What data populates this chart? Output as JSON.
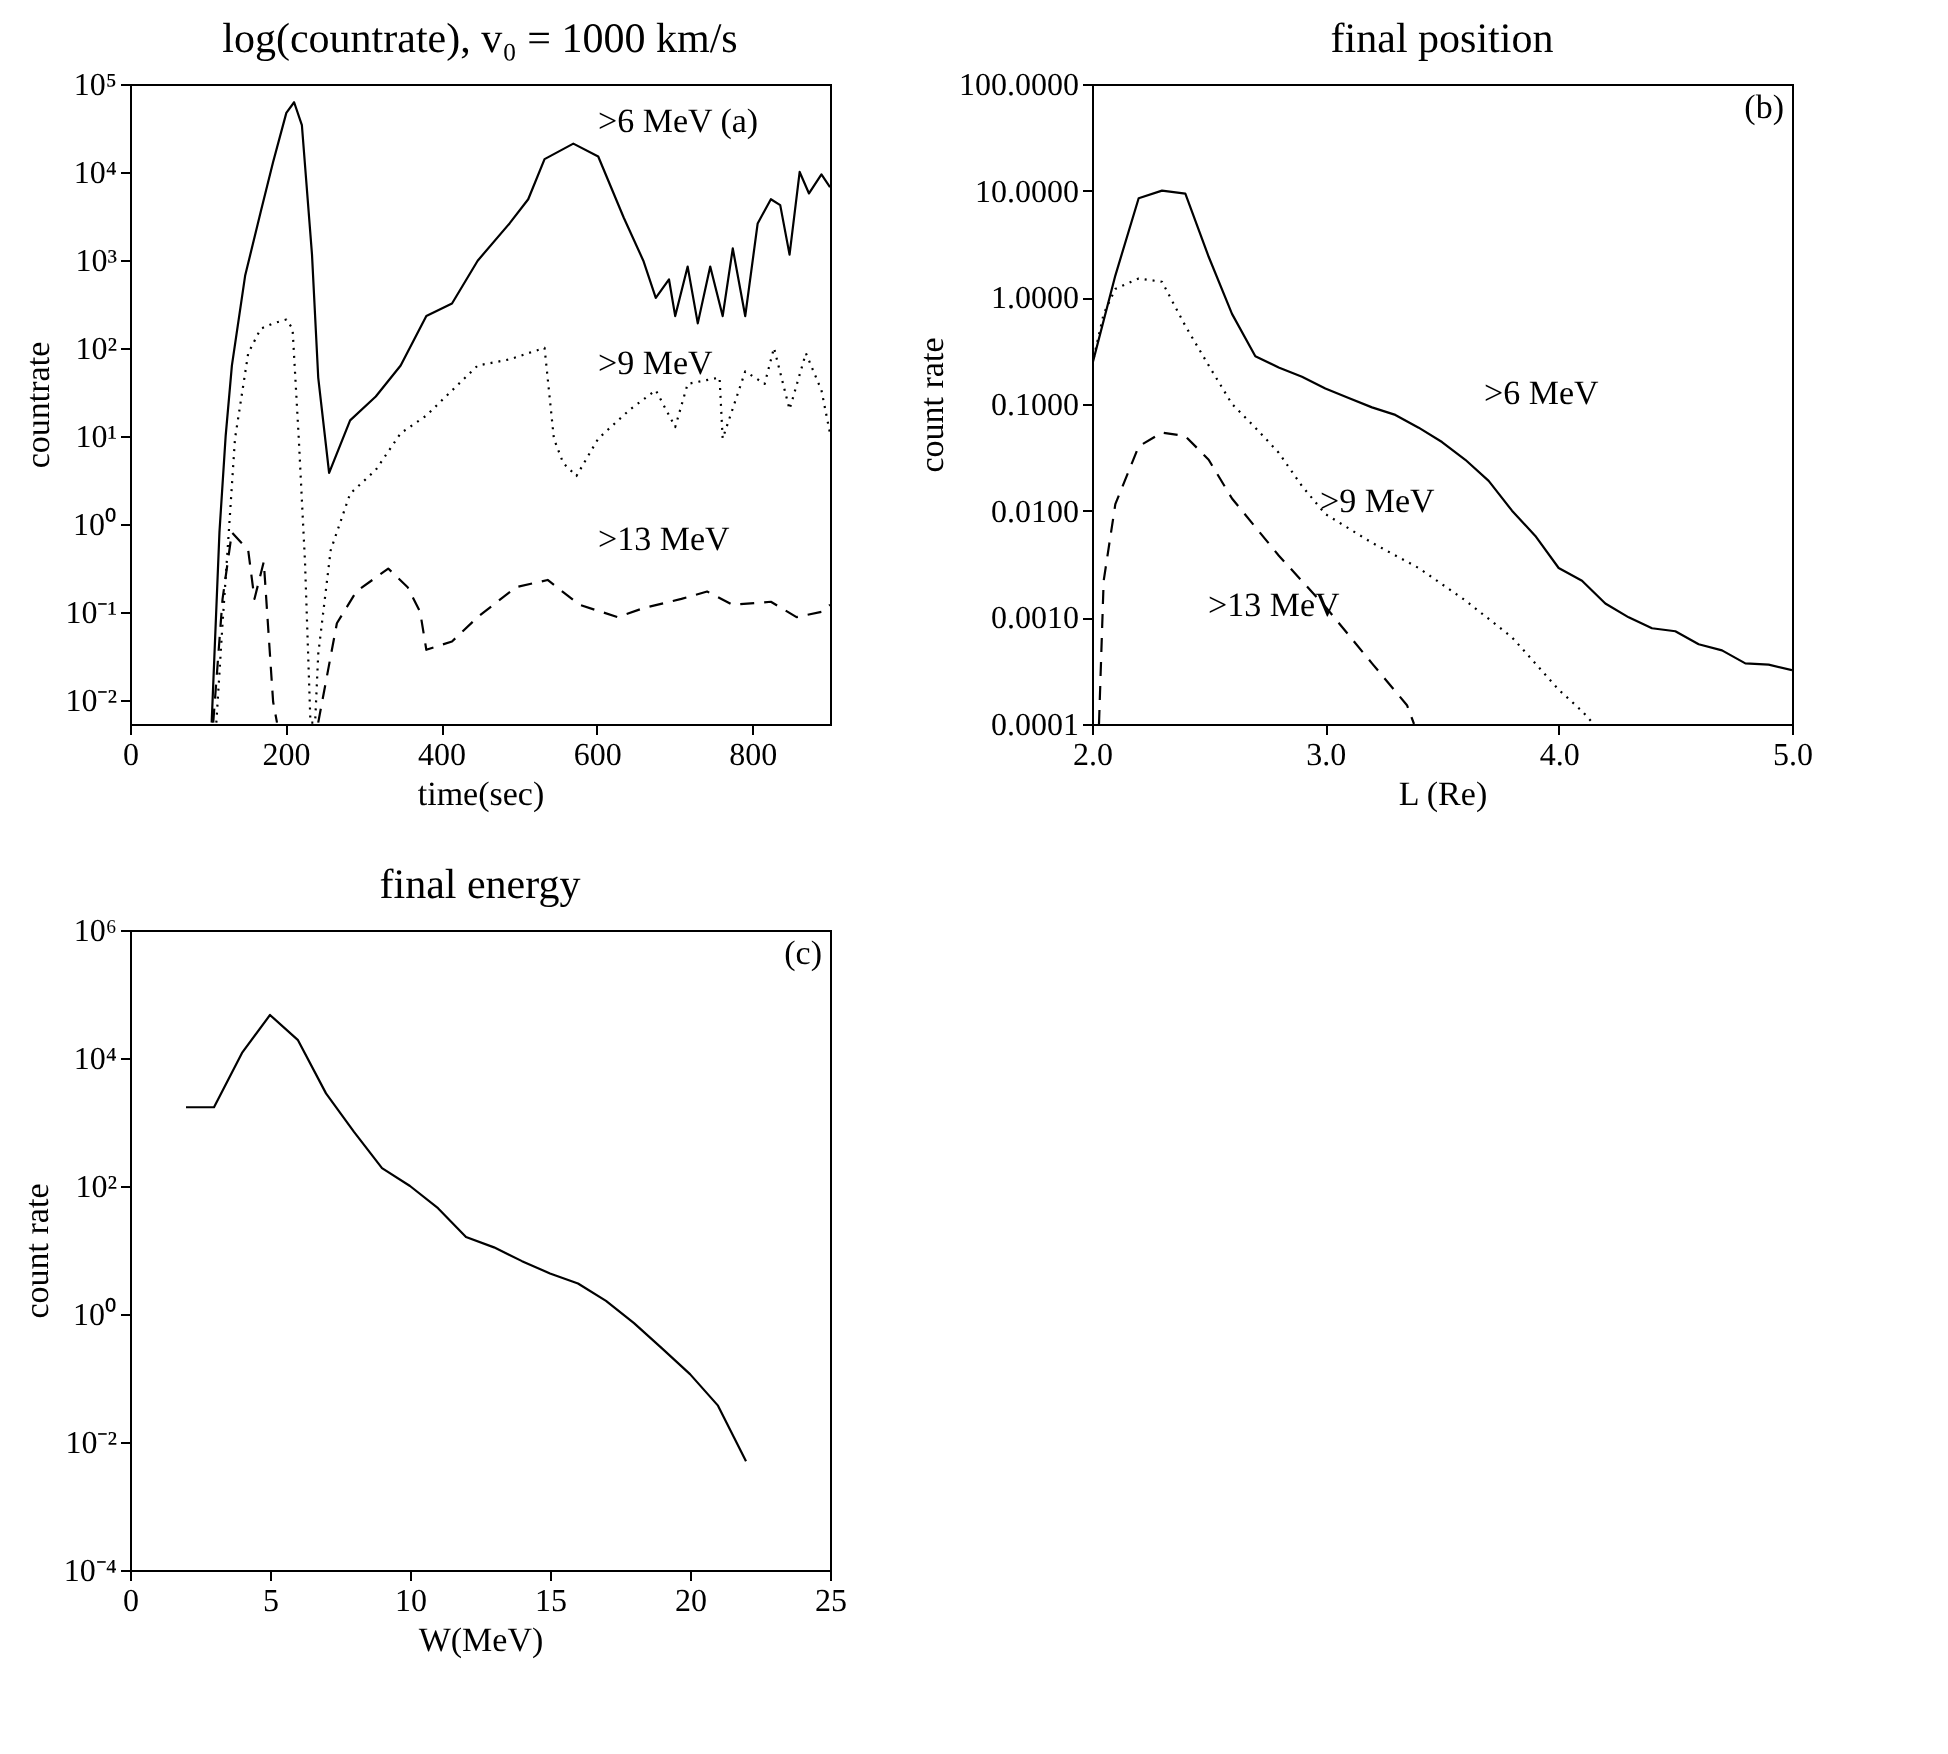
{
  "chart_data": [
    {
      "type": "line",
      "title": "log(countrate), v₀ = 1000 km/s",
      "xlabel": "time(sec)",
      "ylabel": "countrate",
      "log": true,
      "xlim": [
        0,
        900
      ],
      "xticks": [
        0,
        200,
        400,
        600,
        800
      ],
      "ylim": [
        0.0053,
        100000
      ],
      "yticks": [
        {
          "value": 0.01,
          "label": "10⁻²"
        },
        {
          "value": 0.1,
          "label": "10⁻¹"
        },
        {
          "value": 1,
          "label": "10⁰"
        },
        {
          "value": 10,
          "label": "10¹"
        },
        {
          "value": 100,
          "label": "10²"
        },
        {
          "value": 1000,
          "label": "10³"
        },
        {
          "value": 10000,
          "label": "10⁴"
        },
        {
          "value": 100000,
          "label": "10⁵"
        }
      ],
      "series": [
        {
          "color": "#000000",
          "line_style": "solid",
          "x": [
            105,
            115,
            123,
            131,
            148,
            168,
            184,
            201,
            211,
            221,
            234,
            242,
            256,
            283,
            316,
            348,
            381,
            414,
            447,
            488,
            512,
            533,
            570,
            602,
            635,
            660,
            676,
            693,
            701,
            717,
            730,
            746,
            762,
            775,
            791,
            807,
            824,
            836,
            848,
            861,
            873,
            889,
            900
          ],
          "values": [
            0.0055,
            0.8,
            10,
            63,
            660,
            3500,
            13000,
            47000,
            62000,
            34000,
            1150,
            46,
            3.8,
            15,
            28,
            63,
            230,
            320,
            980,
            2600,
            4900,
            14000,
            21000,
            15000,
            3000,
            980,
            370,
            600,
            230,
            840,
            190,
            840,
            230,
            1350,
            230,
            2600,
            4900,
            4200,
            1150,
            10000,
            5700,
            9400,
            6700
          ]
        },
        {
          "color": "#000000",
          "line_style": "dotted",
          "x": [
            111,
            119,
            127,
            135,
            152,
            168,
            184,
            201,
            209,
            217,
            225,
            232,
            238,
            242,
            258,
            283,
            316,
            348,
            381,
            406,
            447,
            488,
            512,
            533,
            545,
            557,
            574,
            602,
            643,
            676,
            701,
            717,
            758,
            762,
            791,
            816,
            828,
            848,
            869,
            889,
            900
          ],
          "values": [
            0.0055,
            0.074,
            0.8,
            9.3,
            87,
            165,
            190,
            210,
            165,
            9.3,
            0.37,
            0.0055,
            0.0055,
            0.033,
            0.5,
            2.2,
            4.1,
            10.7,
            17,
            28,
            63,
            74,
            87,
            100,
            9.3,
            4.9,
            3.5,
            9.3,
            20,
            33,
            12.6,
            39,
            46,
            9.3,
            54,
            39,
            100,
            20,
            87,
            33,
            10.7
          ]
        },
        {
          "color": "#000000",
          "line_style": "dashed",
          "x": [
            107,
            119,
            131,
            152,
            160,
            172,
            184,
            189,
            215,
            242,
            266,
            291,
            332,
            357,
            373,
            381,
            414,
            447,
            496,
            537,
            578,
            627,
            660,
            709,
            742,
            775,
            824,
            857,
            889,
            900
          ],
          "values": [
            0.0055,
            0.14,
            0.8,
            0.5,
            0.14,
            0.37,
            0.0095,
            0.0055,
            null,
            0.0055,
            0.074,
            0.17,
            0.31,
            0.19,
            0.1,
            0.037,
            0.046,
            0.087,
            0.19,
            0.23,
            0.12,
            0.087,
            0.11,
            0.14,
            0.17,
            0.12,
            0.13,
            0.087,
            0.1,
            0.12
          ]
        }
      ],
      "annotations": [
        ">6 MeV (a)",
        ">9 MeV",
        ">13 MeV"
      ]
    },
    {
      "type": "line",
      "title": "final position",
      "xlabel": "L (Re)",
      "ylabel": "count rate",
      "log": true,
      "xlim": [
        2,
        5
      ],
      "xticks": [
        {
          "value": 2,
          "label": "2.0"
        },
        {
          "value": 3,
          "label": "3.0"
        },
        {
          "value": 4,
          "label": "4.0"
        },
        {
          "value": 5,
          "label": "5.0"
        }
      ],
      "ylim": [
        0.0001,
        100
      ],
      "yticks": [
        {
          "value": 0.0001,
          "label": "0.0001"
        },
        {
          "value": 0.001,
          "label": "0.0010"
        },
        {
          "value": 0.01,
          "label": "0.0100"
        },
        {
          "value": 0.1,
          "label": "0.1000"
        },
        {
          "value": 1,
          "label": "1.0000"
        },
        {
          "value": 10,
          "label": "10.0000"
        },
        {
          "value": 100,
          "label": "100.0000"
        }
      ],
      "series": [
        {
          "color": "#000000",
          "line_style": "solid",
          "x": [
            2.0,
            2.1,
            2.2,
            2.3,
            2.4,
            2.5,
            2.6,
            2.7,
            2.8,
            2.9,
            3.0,
            3.1,
            3.2,
            3.3,
            3.4,
            3.5,
            3.6,
            3.7,
            3.8,
            3.9,
            4.0,
            4.1,
            4.2,
            4.3,
            4.4,
            4.5,
            4.6,
            4.7,
            4.8,
            4.9,
            5.0
          ],
          "values": [
            0.23,
            1.6,
            8.5,
            10,
            9.4,
            2.4,
            0.7,
            0.28,
            0.22,
            0.18,
            0.14,
            0.114,
            0.093,
            0.079,
            0.06,
            0.044,
            0.03,
            0.019,
            0.01,
            0.0058,
            0.0029,
            0.0022,
            0.00135,
            0.001,
            0.00079,
            0.00074,
            0.00056,
            0.00049,
            0.00037,
            0.00036,
            0.00032
          ]
        },
        {
          "color": "#000000",
          "line_style": "dotted",
          "x": [
            2.0,
            2.05,
            2.1,
            2.2,
            2.3,
            2.4,
            2.5,
            2.6,
            2.7,
            2.8,
            2.9,
            3.0,
            3.2,
            3.4,
            3.6,
            3.8,
            4.0,
            4.1,
            4.15
          ],
          "values": [
            0.23,
            0.7,
            1.2,
            1.5,
            1.4,
            0.54,
            0.23,
            0.1,
            0.06,
            0.035,
            0.017,
            0.0093,
            0.005,
            0.0029,
            0.00144,
            0.00065,
            0.00021,
            0.000132,
            0.0001
          ]
        },
        {
          "color": "#000000",
          "line_style": "dashed",
          "x": [
            2.03,
            2.05,
            2.1,
            2.2,
            2.3,
            2.4,
            2.5,
            2.6,
            2.8,
            3.0,
            3.2,
            3.35,
            3.38
          ],
          "values": [
            0.0001,
            0.0022,
            0.0115,
            0.04,
            0.054,
            0.05,
            0.03,
            0.013,
            0.0038,
            0.00126,
            0.00037,
            0.00015,
            0.0001
          ]
        }
      ],
      "annotations": [
        ">6 MeV",
        ">9 MeV",
        ">13 MeV",
        "(b)"
      ]
    },
    {
      "type": "line",
      "title": "final energy",
      "xlabel": "W(MeV)",
      "ylabel": "count rate",
      "log": true,
      "xlim": [
        0,
        25
      ],
      "xticks": [
        0,
        5,
        10,
        15,
        20,
        25
      ],
      "ylim": [
        0.0001,
        1000000
      ],
      "yticks": [
        {
          "value": 0.0001,
          "label": "10⁻⁴"
        },
        {
          "value": 0.01,
          "label": "10⁻²"
        },
        {
          "value": 1,
          "label": "10⁰"
        },
        {
          "value": 100,
          "label": "10²"
        },
        {
          "value": 10000,
          "label": "10⁴"
        },
        {
          "value": 1000000,
          "label": "10⁶"
        }
      ],
      "series": [
        {
          "color": "#000000",
          "line_style": "solid",
          "x": [
            2,
            3,
            4,
            5,
            6,
            7,
            8,
            9,
            10,
            11,
            12,
            13,
            14,
            15,
            16,
            17,
            18,
            19,
            20,
            21,
            22
          ],
          "values": [
            1700,
            1700,
            12000,
            47000,
            19000,
            2800,
            700,
            190,
            100,
            45,
            16,
            11,
            6.7,
            4.3,
            3.0,
            1.6,
            0.72,
            0.29,
            0.115,
            0.037,
            0.005
          ]
        }
      ],
      "annotations": [
        "(c)"
      ]
    }
  ]
}
